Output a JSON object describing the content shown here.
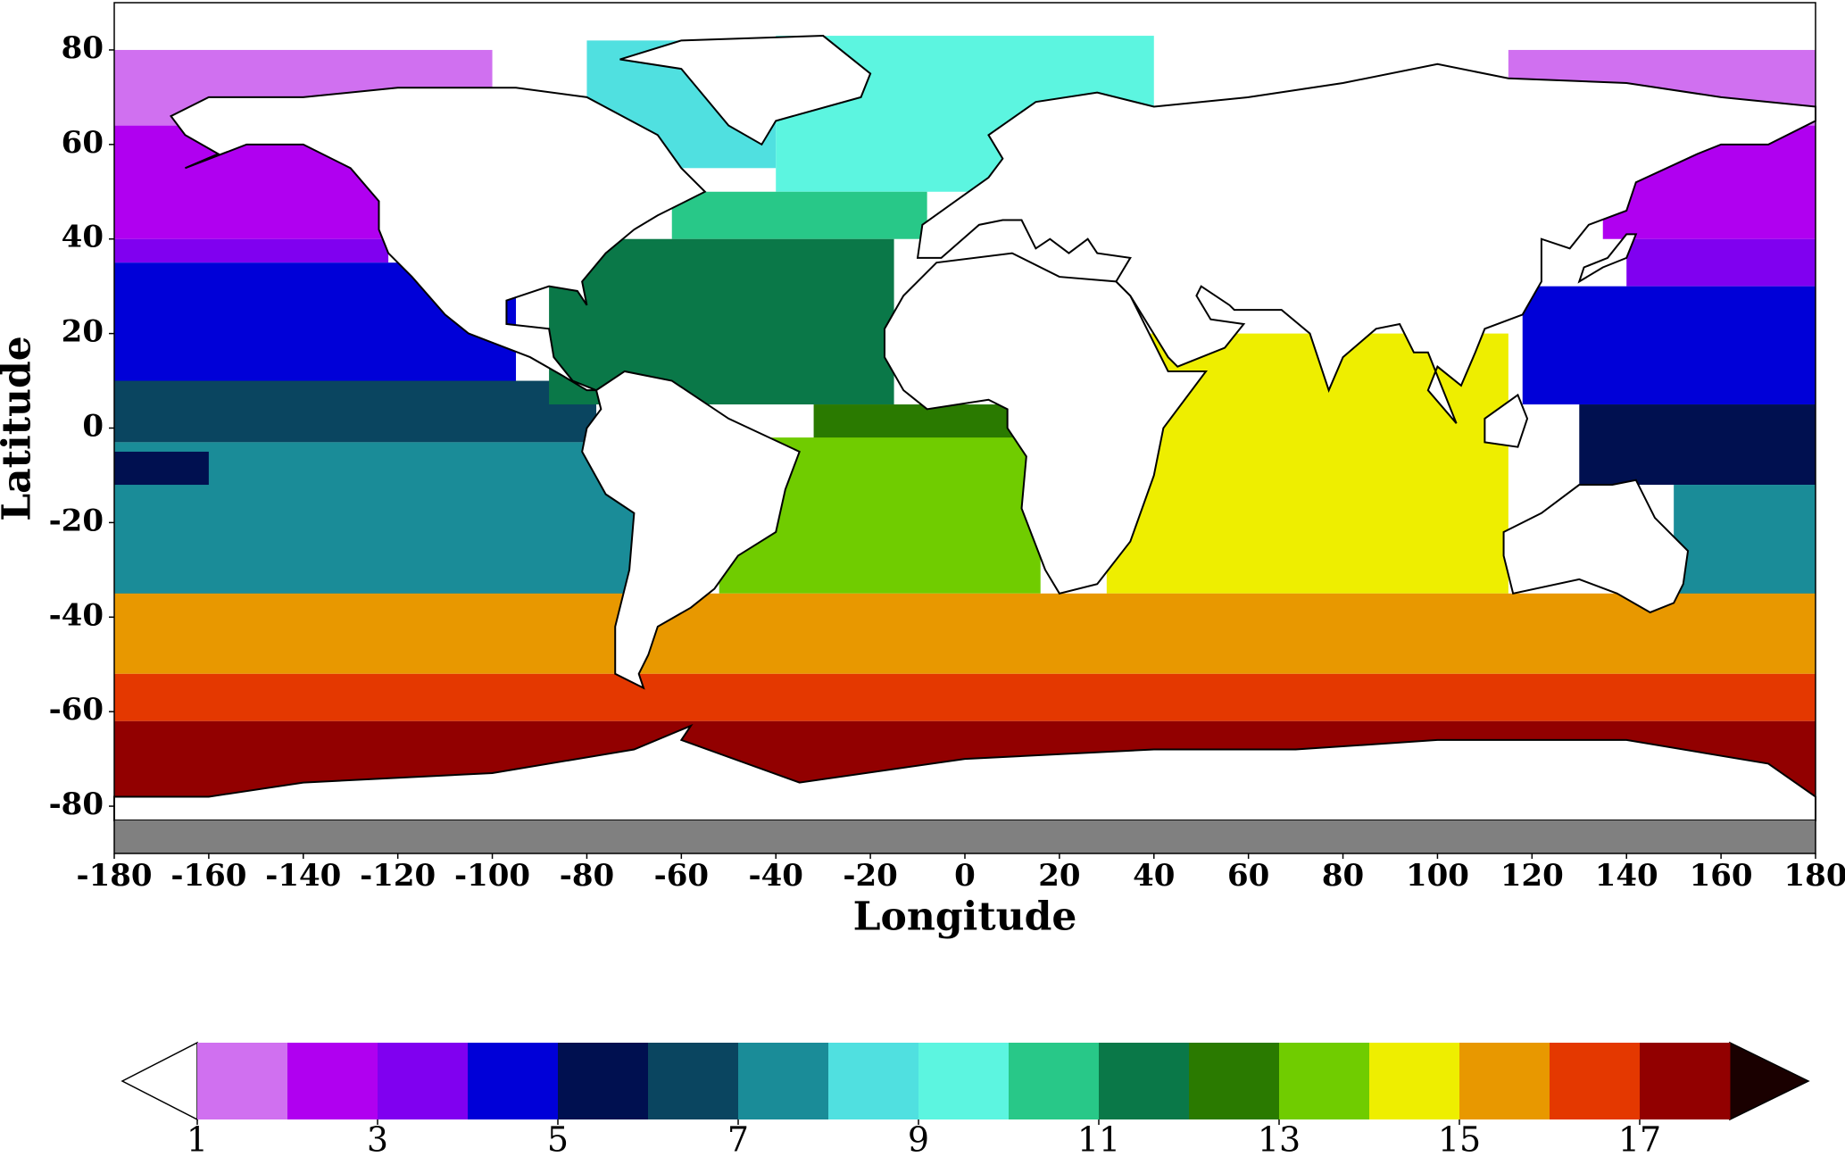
{
  "chart_data": {
    "type": "map",
    "xlabel": "Longitude",
    "ylabel": "Latitude",
    "xlim": [
      -180,
      180
    ],
    "ylim": [
      -90,
      90
    ],
    "xticks": [
      -180,
      -160,
      -140,
      -120,
      -100,
      -80,
      -60,
      -40,
      -20,
      0,
      20,
      40,
      60,
      80,
      100,
      120,
      140,
      160,
      180
    ],
    "yticks": [
      -80,
      -60,
      -40,
      -20,
      0,
      20,
      40,
      60,
      80
    ],
    "regions": [
      {
        "value": 1.5,
        "lon": [
          -180,
          -100
        ],
        "lat": [
          64,
          80
        ]
      },
      {
        "value": 1.5,
        "lon": [
          115,
          180
        ],
        "lat": [
          64,
          80
        ]
      },
      {
        "value": 2.5,
        "lon": [
          -180,
          -120
        ],
        "lat": [
          40,
          64
        ]
      },
      {
        "value": 2.5,
        "lon": [
          135,
          180
        ],
        "lat": [
          40,
          64
        ]
      },
      {
        "value": 3.5,
        "lon": [
          -180,
          -122
        ],
        "lat": [
          35,
          40
        ]
      },
      {
        "value": 3.5,
        "lon": [
          140,
          180
        ],
        "lat": [
          30,
          40
        ]
      },
      {
        "value": 4.5,
        "lon": [
          -180,
          -95
        ],
        "lat": [
          5,
          35
        ]
      },
      {
        "value": 4.5,
        "lon": [
          118,
          180
        ],
        "lat": [
          5,
          30
        ]
      },
      {
        "value": 6.5,
        "lon": [
          -180,
          -78
        ],
        "lat": [
          -3,
          10
        ]
      },
      {
        "value": 7.5,
        "lon": [
          -180,
          -70
        ],
        "lat": [
          -40,
          -3
        ]
      },
      {
        "value": 5.5,
        "lon": [
          -180,
          -160
        ],
        "lat": [
          -12,
          -5
        ]
      },
      {
        "value": 5.5,
        "lon": [
          130,
          180
        ],
        "lat": [
          -12,
          5
        ]
      },
      {
        "value": 7.5,
        "lon": [
          150,
          180
        ],
        "lat": [
          -38,
          -12
        ]
      },
      {
        "value": 8.5,
        "lon": [
          -80,
          -40
        ],
        "lat": [
          55,
          82
        ]
      },
      {
        "value": 9.5,
        "lon": [
          -40,
          40
        ],
        "lat": [
          50,
          83
        ]
      },
      {
        "value": 10.5,
        "lon": [
          -62,
          -8
        ],
        "lat": [
          40,
          50
        ]
      },
      {
        "value": 11.5,
        "lon": [
          -88,
          -15
        ],
        "lat": [
          5,
          40
        ]
      },
      {
        "value": 12.5,
        "lon": [
          -32,
          12
        ],
        "lat": [
          -10,
          5
        ]
      },
      {
        "value": 13.5,
        "lon": [
          -52,
          16
        ],
        "lat": [
          -35,
          -2
        ]
      },
      {
        "value": 14.5,
        "lon": [
          30,
          115
        ],
        "lat": [
          -35,
          20
        ]
      },
      {
        "value": 15.5,
        "lon": [
          -180,
          180
        ],
        "lat": [
          -52,
          -35
        ]
      },
      {
        "value": 16.5,
        "lon": [
          -180,
          180
        ],
        "lat": [
          -62,
          -52
        ]
      },
      {
        "value": 17.5,
        "lon": [
          -180,
          180
        ],
        "lat": [
          -78,
          -62
        ]
      }
    ],
    "colorbar": {
      "bounds": [
        1,
        2,
        3,
        4,
        5,
        6,
        7,
        8,
        9,
        10,
        11,
        12,
        13,
        14,
        15,
        16,
        17,
        18
      ],
      "ticks": [
        1,
        3,
        5,
        7,
        9,
        11,
        13,
        15,
        17
      ],
      "colors": [
        "#d070f0",
        "#b000f0",
        "#8000f0",
        "#0000d8",
        "#001050",
        "#0a4560",
        "#1a8c98",
        "#50e0e0",
        "#5cf5e0",
        "#28c888",
        "#0a7848",
        "#2a7a00",
        "#70cc00",
        "#eeee00",
        "#e89800",
        "#e43800",
        "#920000"
      ],
      "under_color": "#ffffff",
      "over_color": "#1a0000"
    }
  }
}
